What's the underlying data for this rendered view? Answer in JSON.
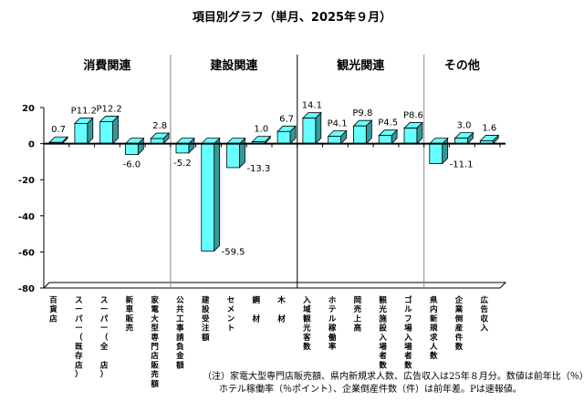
{
  "chart_data": {
    "type": "bar",
    "title": "項目別グラフ（単月、2025年９月）",
    "xlabel": "",
    "ylabel": "",
    "ylim": [
      -80,
      20
    ],
    "yticks": [
      20,
      0,
      -20,
      -40,
      -60,
      -80
    ],
    "grid": false,
    "groups": [
      {
        "name": "消費関連",
        "categories": [
          0,
          1,
          2,
          3,
          4
        ]
      },
      {
        "name": "建設関連",
        "categories": [
          5,
          6,
          7,
          8,
          9
        ]
      },
      {
        "name": "観光関連",
        "categories": [
          10,
          11,
          12,
          13,
          14
        ]
      },
      {
        "name": "その他",
        "categories": [
          15,
          16,
          17
        ]
      }
    ],
    "categories": [
      "百貨店",
      "スーパー（既存店）",
      "スーパー（全　店）",
      "新車販売",
      "家電大型専門店販売額",
      "公共工事請負金額",
      "建設受注額",
      "セメント",
      "鋼　材",
      "木　材",
      "入域観光客数",
      "ホテル稼働率",
      "岡売上高",
      "観光施設入場者数",
      "ゴルフ場入場者数",
      "県内新規求人数",
      "企業倒産件数",
      "広告収入"
    ],
    "values": [
      0.7,
      11.2,
      12.2,
      -6.0,
      2.8,
      -5.2,
      -59.5,
      -13.3,
      1.0,
      6.7,
      14.1,
      4.1,
      9.8,
      4.5,
      8.6,
      -11.1,
      3.0,
      1.6
    ],
    "value_labels": [
      "0.7",
      "P11.2",
      "P12.2",
      "-6.0",
      "2.8",
      "-5.2",
      "-59.5",
      "-13.3",
      "1.0",
      "6.7",
      "14.1",
      "P4.1",
      "P9.8",
      "P4.5",
      "P8.6",
      "-11.1",
      "3.0",
      "1.6"
    ],
    "bar_color": "#66ffff",
    "bar_side_color": "#339999"
  },
  "notes": [
    "（注）家電大型専門店販売額、県内新規求人数、広告収入は25年８月分。数値は前年比（％）。",
    "ホテル稼働率（％ポイント）、企業倒産件数（件）は前年差。Pは速報値。"
  ]
}
